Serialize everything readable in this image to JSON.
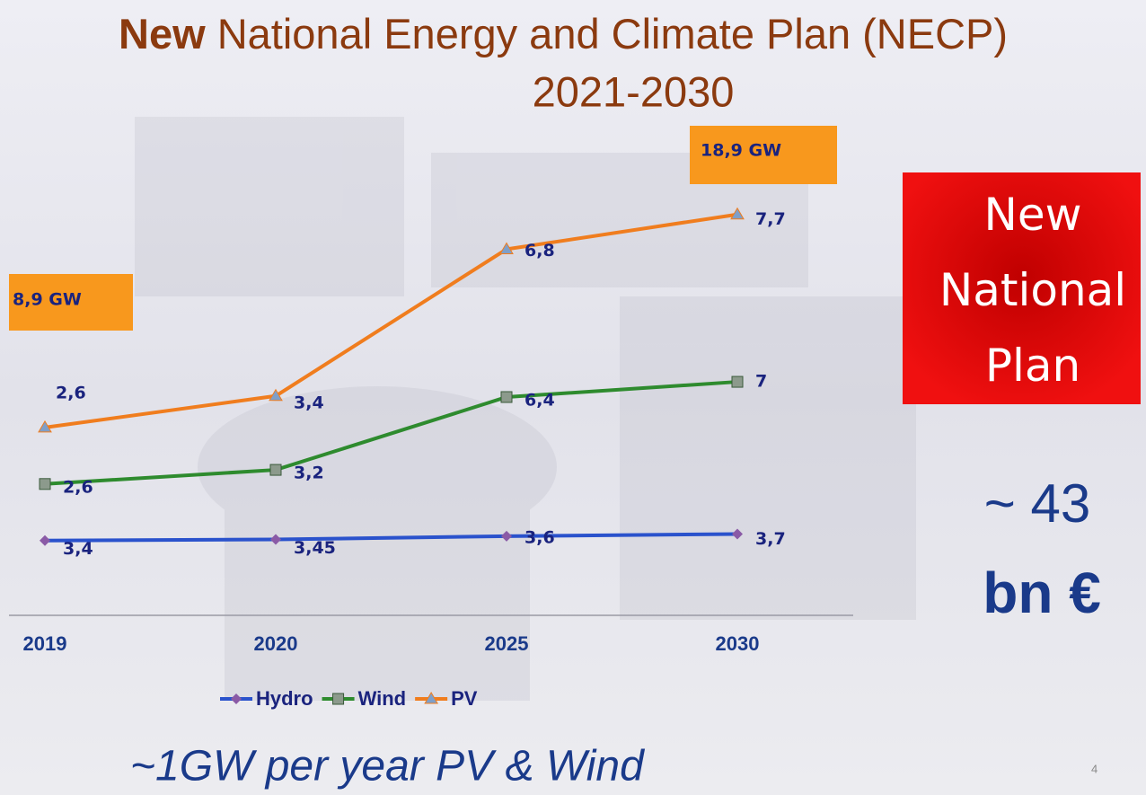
{
  "chart_data": {
    "type": "line",
    "stacked": true,
    "title_parts": [
      "New",
      "National Energy and Climate Plan (NECP)"
    ],
    "subtitle": "2021-2030",
    "categories": [
      "2019",
      "2020",
      "2025",
      "2030"
    ],
    "series": [
      {
        "name": "Hydro",
        "color": "#2a52cc",
        "marker": "diamond",
        "marker_color": "#8a5aa6",
        "values": [
          3.4,
          3.45,
          3.6,
          3.7
        ],
        "value_labels": [
          "3,4",
          "3,45",
          "3,6",
          "3,7"
        ]
      },
      {
        "name": "Wind",
        "color": "#2e8b2e",
        "marker": "square",
        "marker_color": "#8c9a8c",
        "values": [
          2.6,
          3.2,
          6.4,
          7
        ],
        "value_labels": [
          "2,6",
          "3,2",
          "6,4",
          "7"
        ]
      },
      {
        "name": "PV",
        "color": "#f07d1e",
        "marker": "triangle",
        "marker_color": "#7f9fc8",
        "values": [
          2.6,
          3.4,
          6.8,
          7.7
        ],
        "value_labels": [
          "2,6",
          "3,4",
          "6,8",
          "7,7"
        ]
      }
    ],
    "ylim": [
      0,
      20
    ],
    "legend": "bottom",
    "annotations": [
      "8,9 GW",
      "18,9 GW",
      "New National Plan",
      "~ 43",
      "bn €",
      "~1GW per year PV & Wind",
      "4"
    ]
  }
}
